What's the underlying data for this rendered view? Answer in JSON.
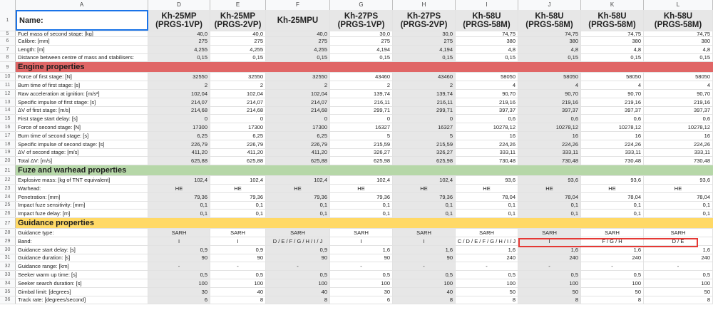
{
  "columns": [
    "A",
    "D",
    "E",
    "F",
    "G",
    "H",
    "I",
    "J",
    "K",
    "L"
  ],
  "header_row": {
    "num": "1",
    "label": "Name:",
    "cells": [
      "Kh-25MP\n(PRGS-1VP)",
      "Kh-25MP\n(PRGS-2VP)",
      "Kh-25MPU",
      "Kh-27PS\n(PRGS-1VP)",
      "Kh-27PS\n(PRGS-2VP)",
      "Kh-58U\n(PRGS-58M)",
      "Kh-58U\n(PRGS-58M)",
      "Kh-58U\n(PRGS-58M)",
      "Kh-58U\n(PRGS-58M)"
    ]
  },
  "rows": [
    {
      "num": "5",
      "label": "Fuel mass of second stage: [kg]",
      "cells": [
        "40,0",
        "40,0",
        "40,0",
        "30,0",
        "30,0",
        "74,75",
        "74,75",
        "74,75",
        "74,75"
      ],
      "partial": true
    },
    {
      "num": "6",
      "label": "Calibre: [mm]",
      "cells": [
        "275",
        "275",
        "275",
        "275",
        "275",
        "380",
        "380",
        "380",
        "380"
      ]
    },
    {
      "num": "7",
      "label": "Length: [m]",
      "cells": [
        "4,255",
        "4,255",
        "4,255",
        "4,194",
        "4,194",
        "4,8",
        "4,8",
        "4,8",
        "4,8"
      ]
    },
    {
      "num": "8",
      "label": "Distance between centre of mass and stabilisers:",
      "cells": [
        "0,15",
        "0,15",
        "0,15",
        "0,15",
        "0,15",
        "0,15",
        "0,15",
        "0,15",
        "0,15"
      ]
    },
    {
      "num": "9",
      "label": "Engine properties",
      "section": "engine"
    },
    {
      "num": "10",
      "label": "Force of first stage: [N]",
      "cells": [
        "32550",
        "32550",
        "32550",
        "43460",
        "43460",
        "58050",
        "58050",
        "58050",
        "58050"
      ]
    },
    {
      "num": "11",
      "label": "Burn time of first stage: [s]",
      "cells": [
        "2",
        "2",
        "2",
        "2",
        "2",
        "4",
        "4",
        "4",
        "4"
      ]
    },
    {
      "num": "12",
      "label": "Raw acceleration at ignition: [m/s²]",
      "cells": [
        "102,04",
        "102,04",
        "102,04",
        "139,74",
        "139,74",
        "90,70",
        "90,70",
        "90,70",
        "90,70"
      ]
    },
    {
      "num": "13",
      "label": "Specific impulse of first stage: [s]",
      "cells": [
        "214,07",
        "214,07",
        "214,07",
        "216,11",
        "216,11",
        "219,16",
        "219,16",
        "219,16",
        "219,16"
      ]
    },
    {
      "num": "14",
      "label": "ΔV of first stage: [m/s]",
      "cells": [
        "214,68",
        "214,68",
        "214,68",
        "299,71",
        "299,71",
        "397,37",
        "397,37",
        "397,37",
        "397,37"
      ]
    },
    {
      "num": "15",
      "label": "First stage start delay: [s]",
      "cells": [
        "0",
        "0",
        "0",
        "0",
        "0",
        "0,6",
        "0,6",
        "0,6",
        "0,6"
      ]
    },
    {
      "num": "16",
      "label": "Force of second stage: [N]",
      "cells": [
        "17300",
        "17300",
        "17300",
        "16327",
        "16327",
        "10278,12",
        "10278,12",
        "10278,12",
        "10278,12"
      ]
    },
    {
      "num": "17",
      "label": "Burn time of second stage: [s]",
      "cells": [
        "6,25",
        "6,25",
        "6,25",
        "5",
        "5",
        "16",
        "16",
        "16",
        "16"
      ]
    },
    {
      "num": "18",
      "label": "Specific impulse of second stage: [s]",
      "cells": [
        "226,79",
        "226,79",
        "226,79",
        "215,59",
        "215,59",
        "224,26",
        "224,26",
        "224,26",
        "224,26"
      ]
    },
    {
      "num": "19",
      "label": "ΔV of second stage: [m/s]",
      "cells": [
        "411,20",
        "411,20",
        "411,20",
        "326,27",
        "326,27",
        "333,11",
        "333,11",
        "333,11",
        "333,11"
      ]
    },
    {
      "num": "20",
      "label": "Total ΔV: [m/s]",
      "cells": [
        "625,88",
        "625,88",
        "625,88",
        "625,98",
        "625,98",
        "730,48",
        "730,48",
        "730,48",
        "730,48"
      ]
    },
    {
      "num": "21",
      "label": "Fuze and warhead properties",
      "section": "fuze"
    },
    {
      "num": "22",
      "label": "Explosive mass: [kg of TNT equivalent]",
      "cells": [
        "102,4",
        "102,4",
        "102,4",
        "102,4",
        "102,4",
        "93,6",
        "93,6",
        "93,6",
        "93,6"
      ]
    },
    {
      "num": "23",
      "label": "Warhead:",
      "cells": [
        "HE",
        "HE",
        "HE",
        "HE",
        "HE",
        "HE",
        "HE",
        "HE",
        "HE"
      ],
      "center": true
    },
    {
      "num": "24",
      "label": "Penetration: [mm]",
      "cells": [
        "79,36",
        "79,36",
        "79,36",
        "79,36",
        "79,36",
        "78,04",
        "78,04",
        "78,04",
        "78,04"
      ]
    },
    {
      "num": "25",
      "label": "Impact fuze sensitivity: [mm]",
      "cells": [
        "0,1",
        "0,1",
        "0,1",
        "0,1",
        "0,1",
        "0,1",
        "0,1",
        "0,1",
        "0,1"
      ]
    },
    {
      "num": "26",
      "label": "Impact fuze delay: [m]",
      "cells": [
        "0,1",
        "0,1",
        "0,1",
        "0,1",
        "0,1",
        "0,1",
        "0,1",
        "0,1",
        "0,1"
      ]
    },
    {
      "num": "27",
      "label": "Guidance properties",
      "section": "guid"
    },
    {
      "num": "28",
      "label": "Guidance type:",
      "cells": [
        "SARH",
        "SARH",
        "SARH",
        "SARH",
        "SARH",
        "SARH",
        "SARH",
        "SARH",
        "SARH"
      ],
      "center": true
    },
    {
      "num": "29",
      "label": "Band:",
      "cells": [
        "I",
        "I",
        "D / E / F / G / H / I / J",
        "I",
        "I",
        "C / D / E / F / G / H / I / J",
        "I",
        "F / G / H",
        "D / E"
      ],
      "center": true
    },
    {
      "num": "30",
      "label": "Guidance start delay: [s]",
      "cells": [
        "0,9",
        "0,9",
        "0,9",
        "1,6",
        "1,6",
        "1,6",
        "1,6",
        "1,6",
        "1,6"
      ]
    },
    {
      "num": "31",
      "label": "Guidance duration: [s]",
      "cells": [
        "90",
        "90",
        "90",
        "90",
        "90",
        "240",
        "240",
        "240",
        "240"
      ]
    },
    {
      "num": "32",
      "label": "Guidance range: [km]",
      "cells": [
        "-",
        "-",
        "-",
        "-",
        "-",
        "-",
        "-",
        "-",
        "-"
      ],
      "spread": true
    },
    {
      "num": "33",
      "label": "Seeker warm up time: [s]",
      "cells": [
        "0,5",
        "0,5",
        "0,5",
        "0,5",
        "0,5",
        "0,5",
        "0,5",
        "0,5",
        "0,5"
      ]
    },
    {
      "num": "34",
      "label": "Seeker search duration: [s]",
      "cells": [
        "100",
        "100",
        "100",
        "100",
        "100",
        "100",
        "100",
        "100",
        "100"
      ]
    },
    {
      "num": "35",
      "label": "Gimbal limit: [degrees]",
      "cells": [
        "30",
        "40",
        "40",
        "30",
        "40",
        "50",
        "50",
        "50",
        "50"
      ]
    },
    {
      "num": "36",
      "label": "Track rate: [degrees/second]",
      "cells": [
        "6",
        "8",
        "8",
        "6",
        "8",
        "8",
        "8",
        "8",
        "8"
      ]
    }
  ]
}
